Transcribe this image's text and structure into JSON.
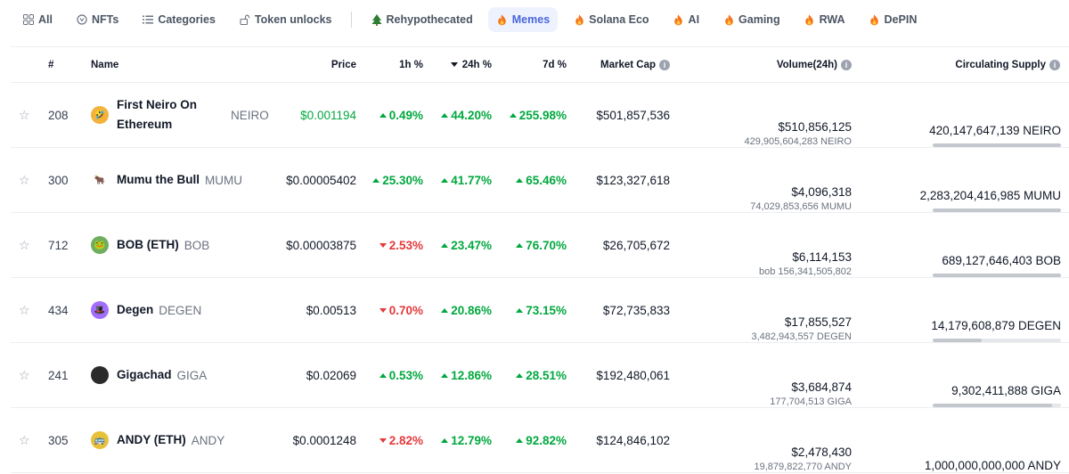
{
  "tabs": [
    {
      "label": "All",
      "icon": "grid-icon",
      "active": false
    },
    {
      "label": "NFTs",
      "icon": "nft-icon",
      "active": false
    },
    {
      "label": "Categories",
      "icon": "list-icon",
      "active": false
    },
    {
      "label": "Token unlocks",
      "icon": "unlock-icon",
      "active": false
    },
    {
      "label": "Rehypothecated",
      "icon": "tree-icon",
      "active": false
    },
    {
      "label": "Memes",
      "icon": "fire-icon",
      "active": true
    },
    {
      "label": "Solana Eco",
      "icon": "fire-icon",
      "active": false
    },
    {
      "label": "AI",
      "icon": "fire-icon",
      "active": false
    },
    {
      "label": "Gaming",
      "icon": "fire-icon",
      "active": false
    },
    {
      "label": "RWA",
      "icon": "fire-icon",
      "active": false
    },
    {
      "label": "DePIN",
      "icon": "fire-icon",
      "active": false
    }
  ],
  "headers": {
    "rank": "#",
    "name": "Name",
    "price": "Price",
    "h1": "1h %",
    "h24": "24h %",
    "d7": "7d %",
    "market_cap": "Market Cap",
    "volume": "Volume(24h)",
    "supply": "Circulating Supply"
  },
  "colors": {
    "up": "#00a83e",
    "down": "#e5393a",
    "active_tab": "#4a67d9"
  },
  "rows": [
    {
      "rank": "208",
      "name": "First Neiro On Ethereum",
      "symbol": "NEIRO",
      "icon_color": "#f2b33d",
      "icon_glyph": "🤣",
      "price": "$0.001194",
      "price_color": "#00a83e",
      "h1": "0.49%",
      "h1_dir": "up",
      "h24": "44.20%",
      "h24_dir": "up",
      "d7": "255.98%",
      "d7_dir": "up",
      "market_cap": "$501,857,536",
      "volume": "$510,856,125",
      "volume_sub": "429,905,604,283 NEIRO",
      "supply": "420,147,647,139 NEIRO",
      "supply_fill": 1.0
    },
    {
      "rank": "300",
      "name": "Mumu the Bull",
      "symbol": "MUMU",
      "icon_color": "#ffffff",
      "icon_glyph": "🐂",
      "price": "$0.00005402",
      "price_color": "#111827",
      "h1": "25.30%",
      "h1_dir": "up",
      "h24": "41.77%",
      "h24_dir": "up",
      "d7": "65.46%",
      "d7_dir": "up",
      "market_cap": "$123,327,618",
      "volume": "$4,096,318",
      "volume_sub": "74,029,853,656 MUMU",
      "supply": "2,283,204,416,985 MUMU",
      "supply_fill": 1.0
    },
    {
      "rank": "712",
      "name": "BOB (ETH)",
      "symbol": "BOB",
      "icon_color": "#6fae5e",
      "icon_glyph": "🐸",
      "price": "$0.00003875",
      "price_color": "#111827",
      "h1": "2.53%",
      "h1_dir": "down",
      "h24": "23.47%",
      "h24_dir": "up",
      "d7": "76.70%",
      "d7_dir": "up",
      "market_cap": "$26,705,672",
      "volume": "$6,114,153",
      "volume_sub": "bob 156,341,505,802",
      "supply": "689,127,646,403 BOB",
      "supply_fill": 1.0
    },
    {
      "rank": "434",
      "name": "Degen",
      "symbol": "DEGEN",
      "icon_color": "#a36efd",
      "icon_glyph": "🎩",
      "price": "$0.00513",
      "price_color": "#111827",
      "h1": "0.70%",
      "h1_dir": "down",
      "h24": "20.86%",
      "h24_dir": "up",
      "d7": "73.15%",
      "d7_dir": "up",
      "market_cap": "$72,735,833",
      "volume": "$17,855,527",
      "volume_sub": "3,482,943,557 DEGEN",
      "supply": "14,179,608,879 DEGEN",
      "supply_fill": 0.38
    },
    {
      "rank": "241",
      "name": "Gigachad",
      "symbol": "GIGA",
      "icon_color": "#2b2b2b",
      "icon_glyph": "",
      "price": "$0.02069",
      "price_color": "#111827",
      "h1": "0.53%",
      "h1_dir": "up",
      "h24": "12.86%",
      "h24_dir": "up",
      "d7": "28.51%",
      "d7_dir": "up",
      "market_cap": "$192,480,061",
      "volume": "$3,684,874",
      "volume_sub": "177,704,513 GIGA",
      "supply": "9,302,411,888 GIGA",
      "supply_fill": 0.93
    },
    {
      "rank": "305",
      "name": "ANDY (ETH)",
      "symbol": "ANDY",
      "icon_color": "#e8c13a",
      "icon_glyph": "🚌",
      "price": "$0.0001248",
      "price_color": "#111827",
      "h1": "2.82%",
      "h1_dir": "down",
      "h24": "12.79%",
      "h24_dir": "up",
      "d7": "92.82%",
      "d7_dir": "up",
      "market_cap": "$124,846,102",
      "volume": "$2,478,430",
      "volume_sub": "19,879,822,770 ANDY",
      "supply": "1,000,000,000,000 ANDY",
      "supply_fill": null
    }
  ]
}
